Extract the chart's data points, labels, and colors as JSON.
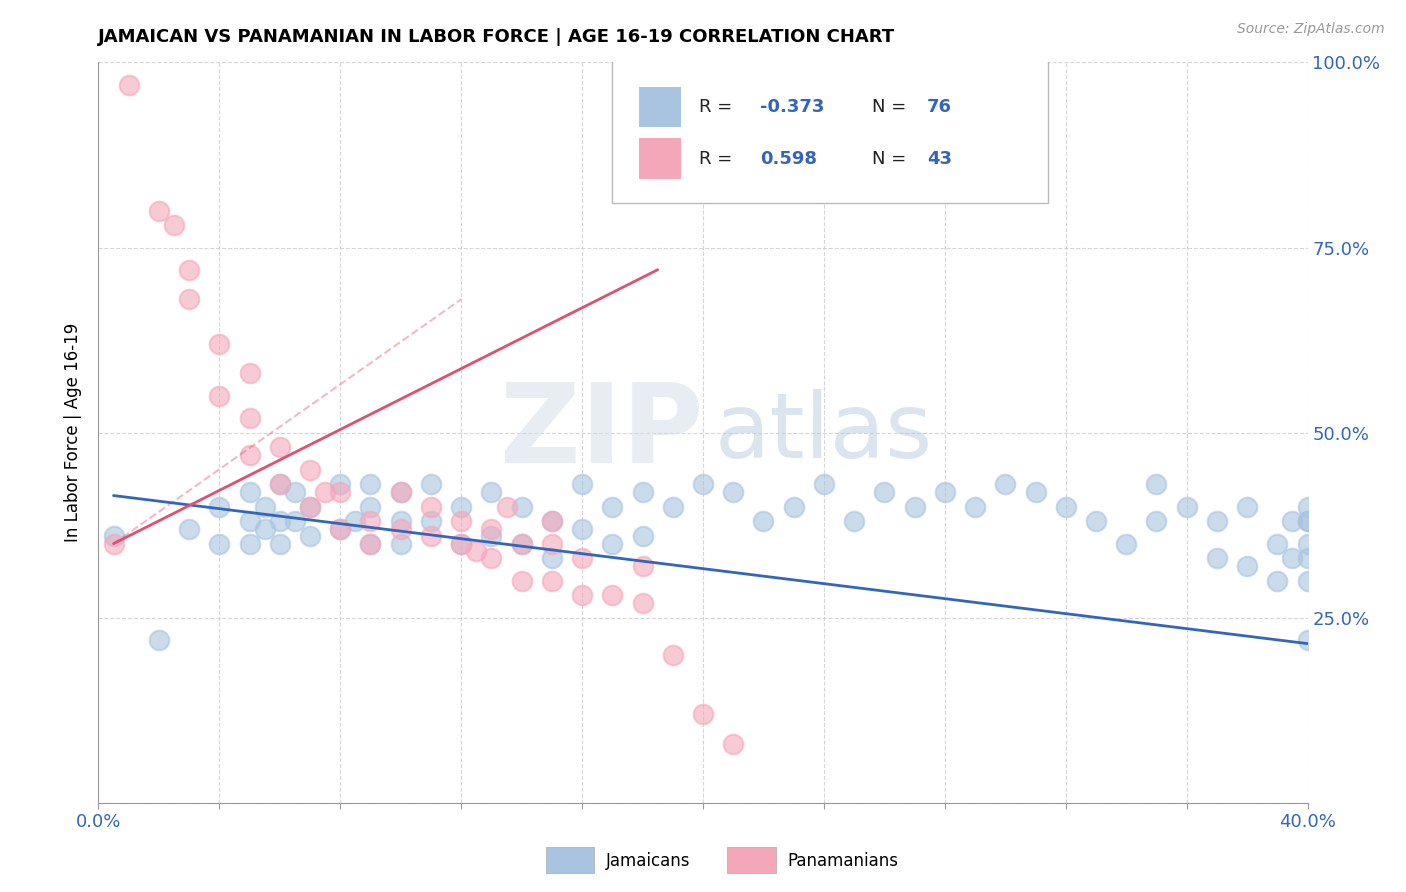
{
  "title": "JAMAICAN VS PANAMANIAN IN LABOR FORCE | AGE 16-19 CORRELATION CHART",
  "source_text": "Source: ZipAtlas.com",
  "ylabel": "In Labor Force | Age 16-19",
  "xlim": [
    0.0,
    0.4
  ],
  "ylim": [
    0.0,
    1.0
  ],
  "blue_R": -0.373,
  "blue_N": 76,
  "pink_R": 0.598,
  "pink_N": 43,
  "blue_color": "#A8C4E0",
  "pink_color": "#F4A7B9",
  "blue_line_color": "#3366BB",
  "pink_line_color": "#E05070",
  "legend_blue_label": "Jamaicans",
  "legend_pink_label": "Panamanians",
  "watermark_zip": "ZIP",
  "watermark_atlas": "atlas",
  "watermark_color_zip": "#C8D8E8",
  "watermark_color_atlas": "#B8CCE0",
  "blue_x": [
    0.005,
    0.02,
    0.03,
    0.04,
    0.04,
    0.05,
    0.05,
    0.05,
    0.055,
    0.055,
    0.06,
    0.06,
    0.06,
    0.065,
    0.065,
    0.07,
    0.07,
    0.08,
    0.08,
    0.085,
    0.09,
    0.09,
    0.09,
    0.1,
    0.1,
    0.1,
    0.11,
    0.11,
    0.12,
    0.12,
    0.13,
    0.13,
    0.14,
    0.14,
    0.15,
    0.15,
    0.16,
    0.16,
    0.17,
    0.17,
    0.18,
    0.18,
    0.19,
    0.2,
    0.21,
    0.22,
    0.23,
    0.24,
    0.25,
    0.26,
    0.27,
    0.28,
    0.29,
    0.3,
    0.31,
    0.32,
    0.33,
    0.34,
    0.35,
    0.35,
    0.36,
    0.37,
    0.37,
    0.38,
    0.38,
    0.39,
    0.39,
    0.395,
    0.395,
    0.4,
    0.4,
    0.4,
    0.4,
    0.4,
    0.4,
    0.4
  ],
  "blue_y": [
    0.36,
    0.22,
    0.37,
    0.35,
    0.4,
    0.42,
    0.38,
    0.35,
    0.4,
    0.37,
    0.38,
    0.43,
    0.35,
    0.38,
    0.42,
    0.4,
    0.36,
    0.43,
    0.37,
    0.38,
    0.4,
    0.35,
    0.43,
    0.42,
    0.38,
    0.35,
    0.43,
    0.38,
    0.4,
    0.35,
    0.42,
    0.36,
    0.4,
    0.35,
    0.38,
    0.33,
    0.43,
    0.37,
    0.4,
    0.35,
    0.42,
    0.36,
    0.4,
    0.43,
    0.42,
    0.38,
    0.4,
    0.43,
    0.38,
    0.42,
    0.4,
    0.42,
    0.4,
    0.43,
    0.42,
    0.4,
    0.38,
    0.35,
    0.43,
    0.38,
    0.4,
    0.38,
    0.33,
    0.4,
    0.32,
    0.35,
    0.3,
    0.38,
    0.33,
    0.38,
    0.33,
    0.3,
    0.35,
    0.38,
    0.4,
    0.22
  ],
  "pink_x": [
    0.005,
    0.01,
    0.02,
    0.025,
    0.03,
    0.03,
    0.04,
    0.04,
    0.05,
    0.05,
    0.05,
    0.06,
    0.06,
    0.07,
    0.07,
    0.075,
    0.08,
    0.08,
    0.09,
    0.09,
    0.1,
    0.1,
    0.11,
    0.11,
    0.12,
    0.12,
    0.125,
    0.13,
    0.13,
    0.135,
    0.14,
    0.14,
    0.15,
    0.15,
    0.15,
    0.16,
    0.16,
    0.17,
    0.18,
    0.18,
    0.19,
    0.2,
    0.21
  ],
  "pink_y": [
    0.35,
    0.97,
    0.8,
    0.78,
    0.68,
    0.72,
    0.55,
    0.62,
    0.47,
    0.52,
    0.58,
    0.43,
    0.48,
    0.4,
    0.45,
    0.42,
    0.37,
    0.42,
    0.35,
    0.38,
    0.37,
    0.42,
    0.36,
    0.4,
    0.35,
    0.38,
    0.34,
    0.33,
    0.37,
    0.4,
    0.3,
    0.35,
    0.3,
    0.35,
    0.38,
    0.28,
    0.33,
    0.28,
    0.27,
    0.32,
    0.2,
    0.12,
    0.08
  ],
  "blue_trend_x": [
    0.005,
    0.4
  ],
  "blue_trend_y": [
    0.415,
    0.215
  ],
  "pink_trend_x": [
    0.005,
    0.185
  ],
  "pink_trend_y": [
    0.35,
    0.72
  ]
}
